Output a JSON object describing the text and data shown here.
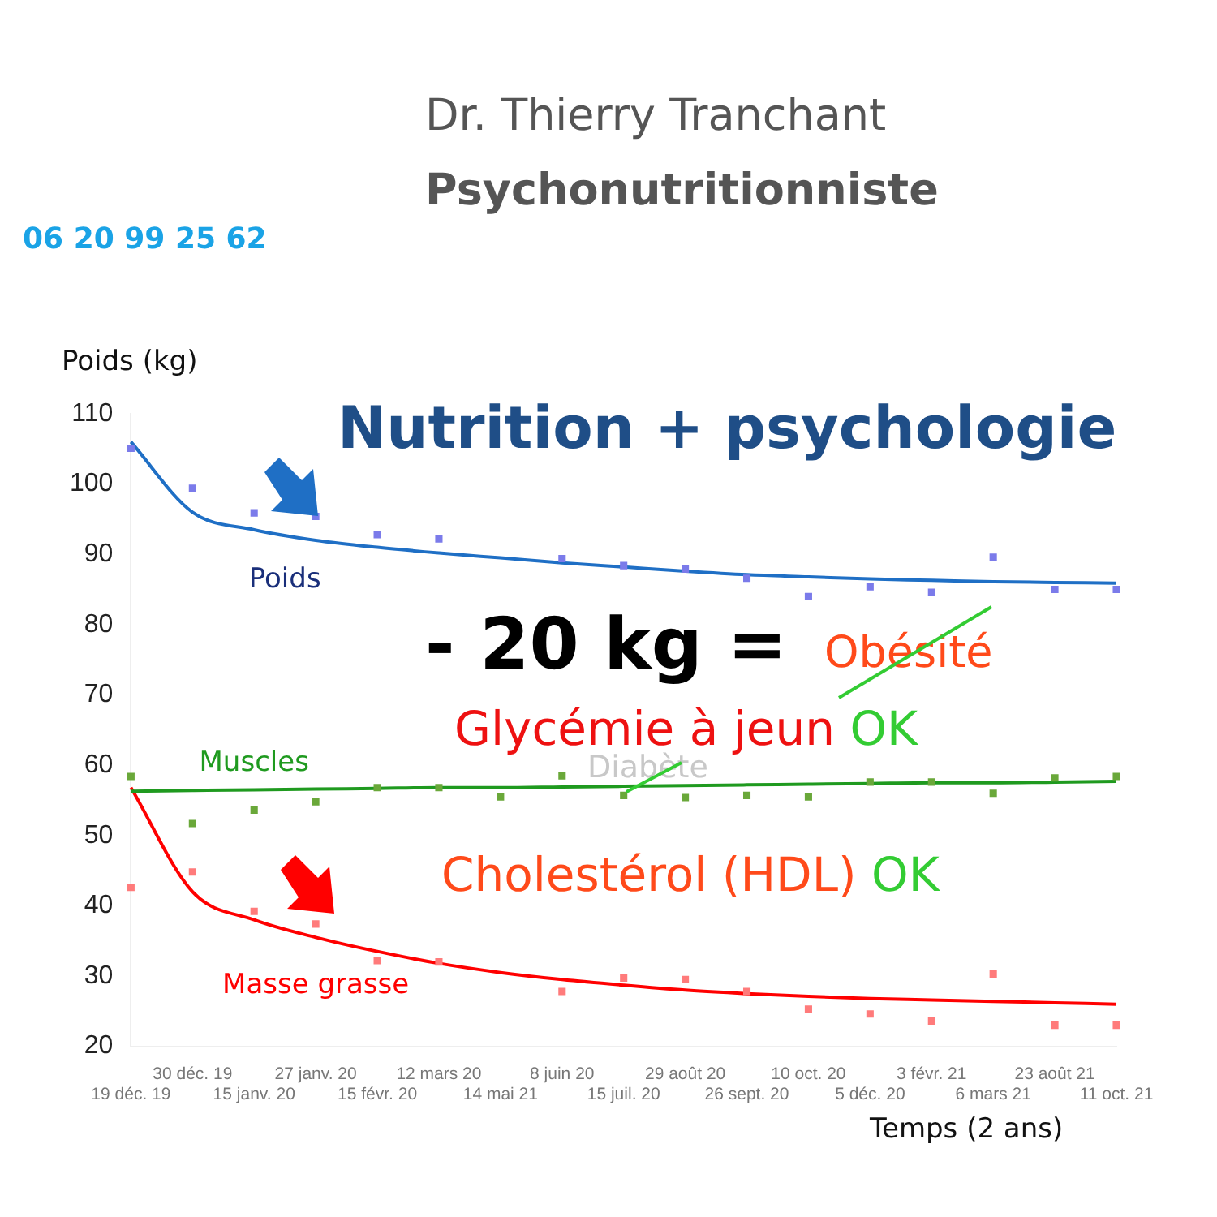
{
  "chart_data": {
    "type": "line",
    "title": "Dr. Thierry Tranchant",
    "subtitle": "Psychonutritionniste",
    "ylabel": "Poids (kg)",
    "xlabel": "Temps (2 ans)",
    "categories": [
      "19 déc. 19",
      "30 déc. 19",
      "15 janv. 20",
      "27 janv. 20",
      "15 févr. 20",
      "12 mars 20",
      "14 mai 21",
      "8 juin 20",
      "15 juil. 20",
      "29 août 20",
      "26 sept. 20",
      "10 oct. 20",
      "5 déc. 20",
      "3 févr. 21",
      "6 mars 21",
      "23 août 21",
      "11 oct. 21"
    ],
    "ylim": [
      20,
      110
    ],
    "yticks": [
      20,
      30,
      40,
      50,
      60,
      70,
      80,
      90,
      100,
      110
    ],
    "grid": false,
    "legend": false,
    "series": [
      {
        "type": "scatter",
        "marker": "square",
        "color": "#7b7bea",
        "values": [
          105.1,
          99.4,
          95.9,
          95.4,
          92.8,
          92.2,
          null,
          89.4,
          88.4,
          87.9,
          86.6,
          84.0,
          85.4,
          84.6,
          89.6,
          85.0,
          85.0
        ]
      },
      {
        "type": "scatter",
        "marker": "square",
        "color": "#6aa83a",
        "values": [
          58.4,
          51.7,
          53.6,
          54.8,
          56.8,
          56.8,
          55.5,
          58.5,
          55.7,
          55.4,
          55.7,
          55.5,
          57.6,
          57.6,
          56.0,
          58.2,
          58.4
        ]
      },
      {
        "type": "scatter",
        "marker": "square",
        "color": "#ff7b7b",
        "values": [
          42.6,
          44.8,
          39.2,
          37.4,
          32.2,
          32.0,
          null,
          27.8,
          29.7,
          29.5,
          27.8,
          25.3,
          24.6,
          23.6,
          30.3,
          23.0,
          23.0
        ]
      },
      {
        "type": "line",
        "marker": "none",
        "name": "Poids",
        "color": "#1f6fc5",
        "values": [
          106,
          96,
          93.5,
          92,
          91,
          90.2,
          89.5,
          88.8,
          88.2,
          87.6,
          87.1,
          86.8,
          86.5,
          86.3,
          86.1,
          86,
          85.9
        ]
      },
      {
        "type": "line",
        "marker": "none",
        "name": "Muscles",
        "color": "#1f9a1f",
        "values": [
          56.3,
          56.4,
          56.5,
          56.6,
          56.7,
          56.8,
          56.8,
          56.9,
          57.0,
          57.1,
          57.2,
          57.3,
          57.4,
          57.5,
          57.5,
          57.6,
          57.7
        ]
      },
      {
        "type": "line",
        "marker": "none",
        "name": "Masse grasse",
        "color": "#ff0000",
        "values": [
          56.8,
          42,
          38,
          35.5,
          33.5,
          31.8,
          30.5,
          29.5,
          28.7,
          28,
          27.5,
          27.1,
          26.8,
          26.6,
          26.4,
          26.2,
          26
        ]
      }
    ],
    "annotations": [
      "06 20 99 25 62",
      "Nutrition + psychologie",
      "- 20 kg  =",
      "Obésité",
      "Glycémie à jeun OK",
      "Diabète",
      "Cholestérol (HDL) OK"
    ]
  }
}
